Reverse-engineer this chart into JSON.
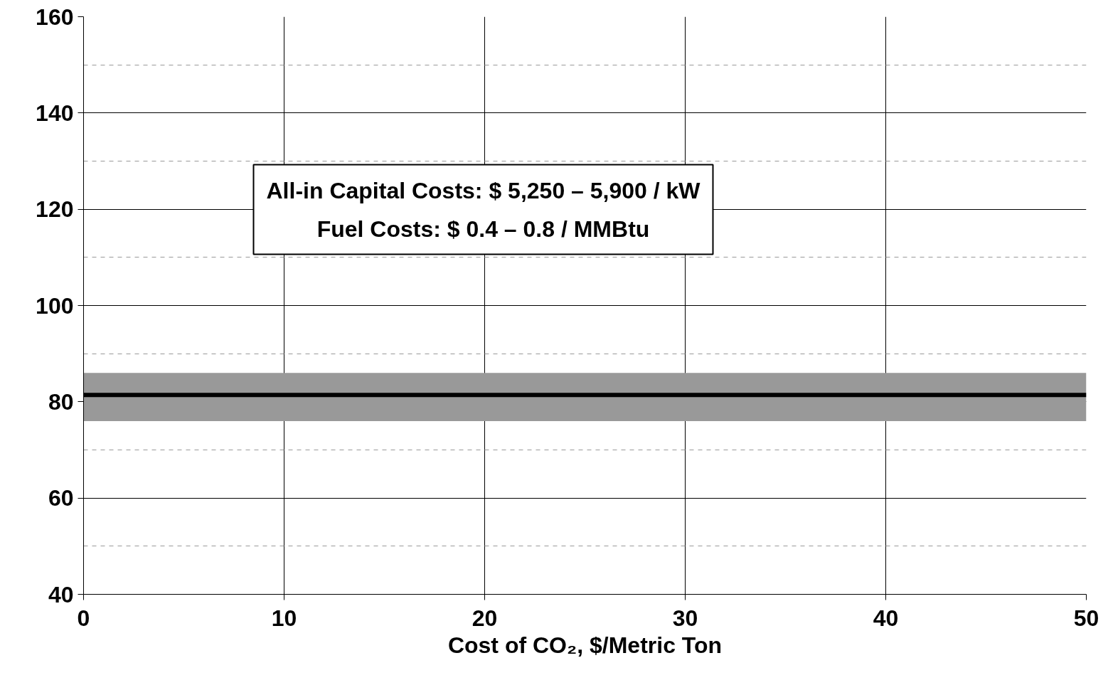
{
  "chart_data": {
    "type": "line",
    "xlabel": "Cost of CO₂, $/Metric Ton",
    "annotations": [
      "All-in Capital Costs: $ 5,250 – 5,900 / kW",
      "Fuel Costs: $ 0.4 – 0.8 / MMBtu"
    ],
    "series": [
      {
        "color": "#000000",
        "x": [
          0,
          50
        ],
        "values": [
          81.4,
          81.4
        ]
      }
    ],
    "bands": [
      {
        "axis": "y",
        "from": 76,
        "to": 86,
        "color": "#999999"
      }
    ],
    "xlim": [
      0,
      50
    ],
    "xticks": [
      0,
      10,
      20,
      30,
      40,
      50
    ],
    "ylim": [
      40,
      160
    ],
    "yticks": [
      40,
      {
        "value": 50,
        "label": null
      },
      60,
      {
        "value": 70,
        "label": null
      },
      80,
      {
        "value": 90,
        "label": null
      },
      100,
      {
        "value": 110,
        "label": null
      },
      120,
      {
        "value": 130,
        "label": null
      },
      140,
      {
        "value": 150,
        "label": null
      },
      160
    ],
    "grid": true,
    "marker": "none",
    "line_style": "solid"
  }
}
